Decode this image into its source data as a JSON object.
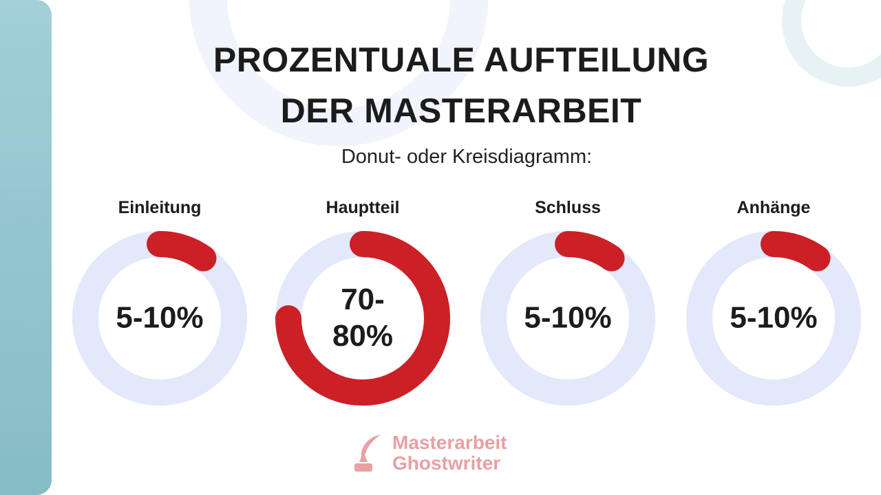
{
  "header": {
    "title_line_1": "PROZENTUALE AUFTEILUNG",
    "title_line_2": "DER MASTERARBEIT",
    "subtitle": "Donut- oder Kreisdiagramm:"
  },
  "chart_data": [
    {
      "type": "donut",
      "title": "Einleitung",
      "values": [
        10
      ],
      "value_labels": [
        "5-10%"
      ],
      "color": "#cc2027",
      "track_color": "#e3e8fb"
    },
    {
      "type": "donut",
      "title": "Hauptteil",
      "values": [
        75
      ],
      "value_labels": [
        "70-80%"
      ],
      "color": "#cc2027",
      "track_color": "#e3e8fb"
    },
    {
      "type": "donut",
      "title": "Schluss",
      "values": [
        10
      ],
      "value_labels": [
        "5-10%"
      ],
      "color": "#cc2027",
      "track_color": "#e3e8fb"
    },
    {
      "type": "donut",
      "title": "Anhänge",
      "values": [
        10
      ],
      "value_labels": [
        "5-10%"
      ],
      "color": "#cc2027",
      "track_color": "#e3e8fb"
    }
  ],
  "logo": {
    "line_1": "Masterarbeit",
    "line_2": "Ghostwriter"
  }
}
